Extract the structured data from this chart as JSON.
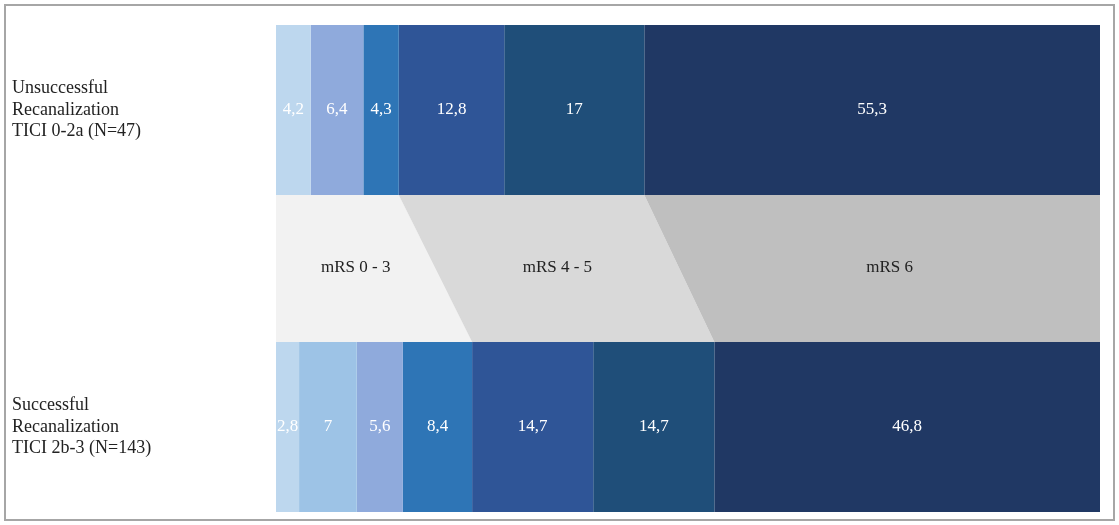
{
  "chart_data": {
    "type": "bar",
    "orientation": "horizontal",
    "stacked": true,
    "categories": [
      "Unsuccessful Recanalization TICI 0-2a (N=47)",
      "Successful Recanalization TICI 2b-3 (N=143)"
    ],
    "series": [
      {
        "color": "#bdd7ee",
        "values": [
          4.2,
          2.8
        ],
        "value_labels": [
          "4,2",
          "2,8"
        ]
      },
      {
        "color": "#9dc3e6",
        "values": [
          null,
          7
        ],
        "value_labels": [
          null,
          "7"
        ]
      },
      {
        "color": "#8faadc",
        "values": [
          6.4,
          5.6
        ],
        "value_labels": [
          "6,4",
          "5,6"
        ]
      },
      {
        "color": "#2e75b6",
        "values": [
          4.3,
          8.4
        ],
        "value_labels": [
          "4,3",
          "8,4"
        ]
      },
      {
        "color": "#2f5597",
        "values": [
          12.8,
          14.7
        ],
        "value_labels": [
          "12,8",
          "14,7"
        ]
      },
      {
        "color": "#1f4e79",
        "values": [
          17,
          14.7
        ],
        "value_labels": [
          "17",
          "14,7"
        ]
      },
      {
        "color": "#203864",
        "values": [
          55.3,
          46.8
        ],
        "value_labels": [
          "55,3",
          "46,8"
        ]
      }
    ],
    "annotations": [
      "mRS 0 - 3",
      "mRS 4 - 5",
      "mRS 6"
    ],
    "tick_labels": "y",
    "legend": false
  }
}
